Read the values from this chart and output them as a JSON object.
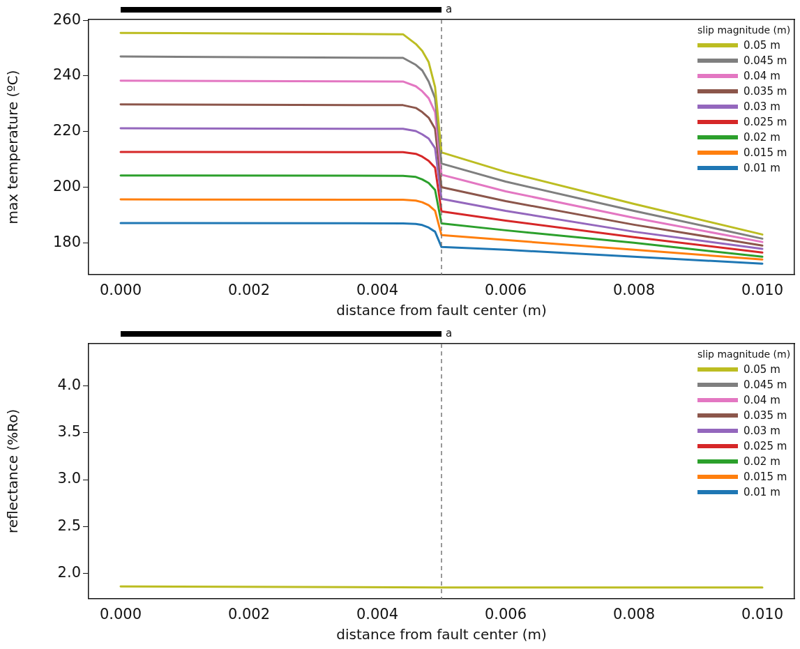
{
  "chart_data": [
    {
      "type": "line",
      "xlabel": "distance from fault center (m)",
      "ylabel": "max temperature (ºC)",
      "legend_title": "slip magnitude (m)",
      "legend": "top right",
      "grid": false,
      "marker": "none",
      "line_style": "solid",
      "xlim": [
        -0.0005,
        0.0105
      ],
      "ylim": [
        168.6,
        260.3
      ],
      "xticks": [
        {
          "value": 0,
          "label": "0.000"
        },
        {
          "value": 0.002,
          "label": "0.002"
        },
        {
          "value": 0.004,
          "label": "0.004"
        },
        {
          "value": 0.006,
          "label": "0.006"
        },
        {
          "value": 0.008,
          "label": "0.008"
        },
        {
          "value": 0.01,
          "label": "0.010"
        }
      ],
      "yticks": [
        180,
        200,
        220,
        240,
        260
      ],
      "x": [
        0,
        0.0044,
        0.0046,
        0.0047,
        0.0048,
        0.0049,
        0.005,
        0.006,
        0.008,
        0.01
      ],
      "ref_lines": [
        {
          "axis": "x",
          "value": 0.005,
          "color": "#777777",
          "line_style": "dashed"
        }
      ],
      "annotations": [
        "a"
      ],
      "series": [
        {
          "name": "0.05 m",
          "color": "#bcbd22",
          "values": [
            255.5,
            255,
            251.5,
            249,
            245,
            236,
            212.5,
            205.5,
            194,
            183
          ]
        },
        {
          "name": "0.045 m",
          "color": "#7f7f7f",
          "values": [
            247,
            246.5,
            244,
            242,
            238,
            232,
            208.5,
            202,
            191.5,
            181.5
          ]
        },
        {
          "name": "0.04 m",
          "color": "#e377c2",
          "values": [
            238.3,
            238,
            236.3,
            234.5,
            232,
            227,
            204.5,
            198.5,
            189,
            180.3
          ]
        },
        {
          "name": "0.035 m",
          "color": "#8c564b",
          "values": [
            229.8,
            229.5,
            228.5,
            227,
            225,
            221,
            200,
            195,
            186.5,
            179
          ]
        },
        {
          "name": "0.03 m",
          "color": "#9467bd",
          "values": [
            221.2,
            221,
            220.2,
            219,
            217.5,
            214,
            195.8,
            191.5,
            184,
            177.8
          ]
        },
        {
          "name": "0.025 m",
          "color": "#d62728",
          "values": [
            212.7,
            212.6,
            212,
            211,
            209.5,
            207,
            191.3,
            188,
            182,
            176.5
          ]
        },
        {
          "name": "0.02 m",
          "color": "#2ca02c",
          "values": [
            204.2,
            204.1,
            203.7,
            202.8,
            201.5,
            199,
            187,
            184.5,
            180,
            175
          ]
        },
        {
          "name": "0.015 m",
          "color": "#ff7f0e",
          "values": [
            195.6,
            195.5,
            195.2,
            194.6,
            193.5,
            191.5,
            182.8,
            181,
            177.5,
            174
          ]
        },
        {
          "name": "0.01 m",
          "color": "#1f77b4",
          "values": [
            187.1,
            187,
            186.8,
            186.4,
            185.5,
            184,
            178.5,
            177.5,
            175,
            172.5
          ]
        }
      ]
    },
    {
      "type": "line",
      "xlabel": "distance from fault center (m)",
      "ylabel": "reflectance (%Ro)",
      "legend_title": "slip magnitude (m)",
      "legend": "top right",
      "grid": false,
      "marker": "none",
      "line_style": "solid",
      "xlim": [
        -0.0005,
        0.0105
      ],
      "ylim": [
        1.73,
        4.45
      ],
      "xticks": [
        {
          "value": 0,
          "label": "0.000"
        },
        {
          "value": 0.002,
          "label": "0.002"
        },
        {
          "value": 0.004,
          "label": "0.004"
        },
        {
          "value": 0.006,
          "label": "0.006"
        },
        {
          "value": 0.008,
          "label": "0.008"
        },
        {
          "value": 0.01,
          "label": "0.010"
        }
      ],
      "yticks": [
        {
          "value": 2,
          "label": "2.0"
        },
        2.5,
        {
          "value": 3,
          "label": "3.0"
        },
        3.5,
        {
          "value": 4,
          "label": "4.0"
        }
      ],
      "x": [
        0,
        0.005,
        0.01
      ],
      "ref_lines": [
        {
          "axis": "x",
          "value": 0.005,
          "color": "#777777",
          "line_style": "dashed"
        }
      ],
      "annotations": [
        "a"
      ],
      "series": [
        {
          "name": "0.05 m",
          "color": "#bcbd22",
          "values": [
            1.86,
            1.85,
            1.85
          ]
        },
        {
          "name": "0.045 m",
          "color": "#7f7f7f",
          "values": [
            null,
            null,
            null
          ]
        },
        {
          "name": "0.04 m",
          "color": "#e377c2",
          "values": [
            null,
            null,
            null
          ]
        },
        {
          "name": "0.035 m",
          "color": "#8c564b",
          "values": [
            null,
            null,
            null
          ]
        },
        {
          "name": "0.03 m",
          "color": "#9467bd",
          "values": [
            null,
            null,
            null
          ]
        },
        {
          "name": "0.025 m",
          "color": "#d62728",
          "values": [
            null,
            null,
            null
          ]
        },
        {
          "name": "0.02 m",
          "color": "#2ca02c",
          "values": [
            null,
            null,
            null
          ]
        },
        {
          "name": "0.015 m",
          "color": "#ff7f0e",
          "values": [
            null,
            null,
            null
          ]
        },
        {
          "name": "0.01 m",
          "color": "#1f77b4",
          "values": [
            null,
            null,
            null
          ]
        }
      ]
    }
  ]
}
